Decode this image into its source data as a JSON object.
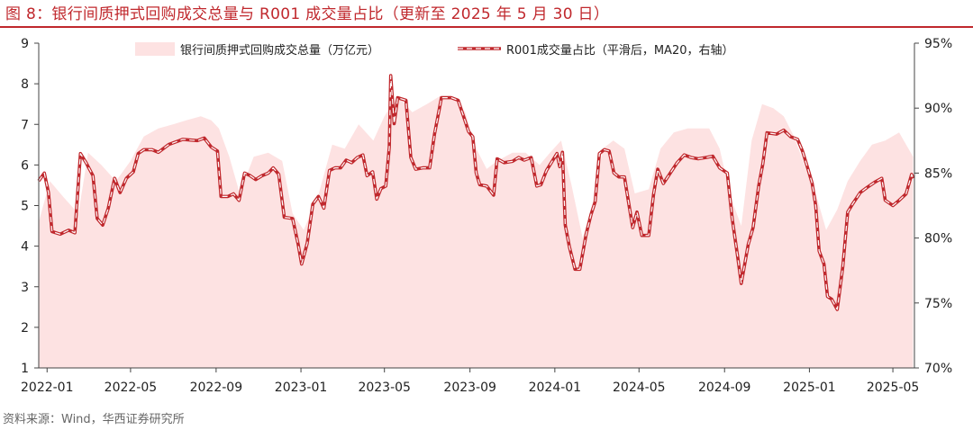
{
  "figure": {
    "title": "图 8：银行间质押式回购成交总量与 R001 成交量占比（更新至 2025 年 5 月 30 日）",
    "source": "资料来源：Wind，华西证券研究所"
  },
  "colors": {
    "title": "#c0282d",
    "area_fill": "#fde2e2",
    "line": "#c0282d",
    "axis": "#444444"
  },
  "chart_data": {
    "type": "line",
    "x_tick_labels": [
      "2022-01",
      "2022-05",
      "2022-09",
      "2023-01",
      "2023-05",
      "2023-09",
      "2024-01",
      "2024-05",
      "2024-09",
      "2025-01",
      "2025-05"
    ],
    "x_range": [
      "2021-12-20",
      "2025-06-01"
    ],
    "left_axis": {
      "range": [
        1,
        9
      ],
      "ticks": [
        "1",
        "2",
        "3",
        "4",
        "5",
        "6",
        "7",
        "8",
        "9"
      ]
    },
    "right_axis": {
      "range": [
        70,
        95
      ],
      "ticks": [
        "70%",
        "75%",
        "80%",
        "85%",
        "90%",
        "95%"
      ]
    },
    "grid": false,
    "legend": "top",
    "series": [
      {
        "name": "银行间质押式回购成交总量（万亿元）",
        "type": "area",
        "axis": "left",
        "points": [
          [
            "2021-12-20",
            4.6
          ],
          [
            "2022-01-05",
            5.6
          ],
          [
            "2022-01-25",
            5.2
          ],
          [
            "2022-02-15",
            4.8
          ],
          [
            "2022-03-01",
            6.3
          ],
          [
            "2022-03-20",
            6.0
          ],
          [
            "2022-04-10",
            5.6
          ],
          [
            "2022-05-01",
            6.1
          ],
          [
            "2022-05-20",
            6.7
          ],
          [
            "2022-06-10",
            6.9
          ],
          [
            "2022-07-01",
            7.0
          ],
          [
            "2022-07-20",
            7.1
          ],
          [
            "2022-08-10",
            7.2
          ],
          [
            "2022-08-25",
            7.1
          ],
          [
            "2022-09-05",
            6.9
          ],
          [
            "2022-09-20",
            6.2
          ],
          [
            "2022-10-05",
            5.3
          ],
          [
            "2022-10-25",
            6.2
          ],
          [
            "2022-11-15",
            6.3
          ],
          [
            "2022-12-05",
            6.1
          ],
          [
            "2022-12-20",
            4.8
          ],
          [
            "2023-01-05",
            4.4
          ],
          [
            "2023-01-25",
            5.2
          ],
          [
            "2023-02-15",
            6.5
          ],
          [
            "2023-03-05",
            6.4
          ],
          [
            "2023-03-25",
            7.0
          ],
          [
            "2023-04-15",
            6.6
          ],
          [
            "2023-05-01",
            7.2
          ],
          [
            "2023-05-20",
            7.7
          ],
          [
            "2023-06-10",
            7.3
          ],
          [
            "2023-07-01",
            7.5
          ],
          [
            "2023-07-20",
            7.7
          ],
          [
            "2023-08-10",
            7.6
          ],
          [
            "2023-08-25",
            7.3
          ],
          [
            "2023-09-10",
            6.4
          ],
          [
            "2023-09-25",
            5.9
          ],
          [
            "2023-10-10",
            6.1
          ],
          [
            "2023-11-01",
            6.3
          ],
          [
            "2023-11-20",
            6.3
          ],
          [
            "2023-12-10",
            6.0
          ],
          [
            "2023-12-25",
            6.3
          ],
          [
            "2024-01-10",
            6.6
          ],
          [
            "2024-01-25",
            5.5
          ],
          [
            "2024-02-10",
            4.2
          ],
          [
            "2024-02-25",
            5.0
          ],
          [
            "2024-03-10",
            6.4
          ],
          [
            "2024-03-25",
            6.6
          ],
          [
            "2024-04-10",
            6.4
          ],
          [
            "2024-04-25",
            5.3
          ],
          [
            "2024-05-15",
            5.4
          ],
          [
            "2024-06-01",
            6.4
          ],
          [
            "2024-06-20",
            6.8
          ],
          [
            "2024-07-10",
            6.9
          ],
          [
            "2024-07-25",
            6.9
          ],
          [
            "2024-08-10",
            6.9
          ],
          [
            "2024-08-25",
            6.4
          ],
          [
            "2024-09-10",
            5.2
          ],
          [
            "2024-09-25",
            4.5
          ],
          [
            "2024-10-10",
            6.6
          ],
          [
            "2024-10-25",
            7.5
          ],
          [
            "2024-11-10",
            7.4
          ],
          [
            "2024-11-25",
            7.2
          ],
          [
            "2024-12-10",
            6.7
          ],
          [
            "2024-12-25",
            6.0
          ],
          [
            "2025-01-10",
            5.3
          ],
          [
            "2025-01-25",
            4.4
          ],
          [
            "2025-02-10",
            4.9
          ],
          [
            "2025-02-25",
            5.6
          ],
          [
            "2025-03-15",
            6.1
          ],
          [
            "2025-04-01",
            6.5
          ],
          [
            "2025-04-20",
            6.6
          ],
          [
            "2025-05-10",
            6.8
          ],
          [
            "2025-05-30",
            6.2
          ]
        ]
      },
      {
        "name": "R001成交量占比（平滑后，MA20，右轴）",
        "type": "line",
        "axis": "right",
        "points": [
          [
            "2021-12-20",
            84.4
          ],
          [
            "2021-12-28",
            85.0
          ],
          [
            "2022-01-03",
            83.5
          ],
          [
            "2022-01-08",
            80.5
          ],
          [
            "2022-01-20",
            80.3
          ],
          [
            "2022-02-01",
            80.6
          ],
          [
            "2022-02-10",
            80.4
          ],
          [
            "2022-02-18",
            86.5
          ],
          [
            "2022-02-26",
            85.8
          ],
          [
            "2022-03-08",
            84.8
          ],
          [
            "2022-03-14",
            81.5
          ],
          [
            "2022-03-22",
            81.0
          ],
          [
            "2022-03-30",
            82.3
          ],
          [
            "2022-04-08",
            84.6
          ],
          [
            "2022-04-16",
            83.5
          ],
          [
            "2022-04-25",
            84.6
          ],
          [
            "2022-05-05",
            85.1
          ],
          [
            "2022-05-12",
            86.5
          ],
          [
            "2022-05-20",
            86.8
          ],
          [
            "2022-06-01",
            86.8
          ],
          [
            "2022-06-10",
            86.6
          ],
          [
            "2022-06-25",
            87.2
          ],
          [
            "2022-07-15",
            87.6
          ],
          [
            "2022-08-05",
            87.5
          ],
          [
            "2022-08-15",
            87.7
          ],
          [
            "2022-08-25",
            87.0
          ],
          [
            "2022-09-03",
            86.7
          ],
          [
            "2022-09-08",
            83.2
          ],
          [
            "2022-09-18",
            83.2
          ],
          [
            "2022-09-26",
            83.4
          ],
          [
            "2022-10-04",
            82.9
          ],
          [
            "2022-10-12",
            85.0
          ],
          [
            "2022-10-20",
            84.8
          ],
          [
            "2022-10-28",
            84.5
          ],
          [
            "2022-11-06",
            84.8
          ],
          [
            "2022-11-15",
            85.0
          ],
          [
            "2022-11-22",
            85.4
          ],
          [
            "2022-11-30",
            84.9
          ],
          [
            "2022-12-08",
            81.6
          ],
          [
            "2022-12-20",
            81.5
          ],
          [
            "2022-12-28",
            79.5
          ],
          [
            "2023-01-02",
            78.0
          ],
          [
            "2023-01-10",
            79.6
          ],
          [
            "2023-01-18",
            82.6
          ],
          [
            "2023-01-26",
            83.2
          ],
          [
            "2023-02-03",
            82.3
          ],
          [
            "2023-02-11",
            85.2
          ],
          [
            "2023-02-19",
            85.4
          ],
          [
            "2023-02-27",
            85.4
          ],
          [
            "2023-03-07",
            86.0
          ],
          [
            "2023-03-15",
            85.8
          ],
          [
            "2023-03-23",
            86.2
          ],
          [
            "2023-03-31",
            86.4
          ],
          [
            "2023-04-06",
            84.8
          ],
          [
            "2023-04-14",
            85.1
          ],
          [
            "2023-04-20",
            83.0
          ],
          [
            "2023-04-26",
            83.8
          ],
          [
            "2023-05-03",
            84.0
          ],
          [
            "2023-05-08",
            87.0
          ],
          [
            "2023-05-10",
            92.5
          ],
          [
            "2023-05-15",
            88.8
          ],
          [
            "2023-05-20",
            90.8
          ],
          [
            "2023-06-01",
            90.6
          ],
          [
            "2023-06-08",
            86.2
          ],
          [
            "2023-06-15",
            85.3
          ],
          [
            "2023-06-25",
            85.4
          ],
          [
            "2023-07-05",
            85.4
          ],
          [
            "2023-07-12",
            88.0
          ],
          [
            "2023-07-22",
            90.8
          ],
          [
            "2023-08-05",
            90.8
          ],
          [
            "2023-08-15",
            90.6
          ],
          [
            "2023-08-22",
            89.5
          ],
          [
            "2023-08-30",
            88.2
          ],
          [
            "2023-09-05",
            87.8
          ],
          [
            "2023-09-10",
            85.0
          ],
          [
            "2023-09-15",
            84.1
          ],
          [
            "2023-09-25",
            84.0
          ],
          [
            "2023-10-05",
            83.3
          ],
          [
            "2023-10-10",
            86.1
          ],
          [
            "2023-10-20",
            85.8
          ],
          [
            "2023-11-01",
            85.9
          ],
          [
            "2023-11-10",
            86.2
          ],
          [
            "2023-11-18",
            86.0
          ],
          [
            "2023-11-28",
            86.2
          ],
          [
            "2023-12-06",
            84.0
          ],
          [
            "2023-12-12",
            84.1
          ],
          [
            "2023-12-20",
            85.2
          ],
          [
            "2023-12-28",
            85.9
          ],
          [
            "2024-01-04",
            86.5
          ],
          [
            "2024-01-08",
            85.5
          ],
          [
            "2024-01-12",
            86.6
          ],
          [
            "2024-01-16",
            81.0
          ],
          [
            "2024-01-22",
            79.3
          ],
          [
            "2024-01-30",
            77.6
          ],
          [
            "2024-02-06",
            77.6
          ],
          [
            "2024-02-15",
            80.3
          ],
          [
            "2024-02-22",
            81.8
          ],
          [
            "2024-02-28",
            82.8
          ],
          [
            "2024-03-05",
            86.5
          ],
          [
            "2024-03-12",
            86.8
          ],
          [
            "2024-03-19",
            86.7
          ],
          [
            "2024-03-26",
            85.0
          ],
          [
            "2024-04-02",
            84.7
          ],
          [
            "2024-04-10",
            84.7
          ],
          [
            "2024-04-17",
            82.4
          ],
          [
            "2024-04-22",
            80.8
          ],
          [
            "2024-04-28",
            82.0
          ],
          [
            "2024-05-05",
            80.2
          ],
          [
            "2024-05-15",
            80.2
          ],
          [
            "2024-05-22",
            83.4
          ],
          [
            "2024-05-28",
            85.3
          ],
          [
            "2024-06-05",
            84.2
          ],
          [
            "2024-06-15",
            85.0
          ],
          [
            "2024-06-25",
            85.8
          ],
          [
            "2024-07-05",
            86.4
          ],
          [
            "2024-07-15",
            86.2
          ],
          [
            "2024-07-25",
            86.1
          ],
          [
            "2024-08-05",
            86.2
          ],
          [
            "2024-08-15",
            86.3
          ],
          [
            "2024-08-25",
            85.4
          ],
          [
            "2024-09-05",
            85.0
          ],
          [
            "2024-09-12",
            81.5
          ],
          [
            "2024-09-20",
            78.5
          ],
          [
            "2024-09-25",
            76.5
          ],
          [
            "2024-10-05",
            79.5
          ],
          [
            "2024-10-12",
            80.8
          ],
          [
            "2024-10-20",
            84.0
          ],
          [
            "2024-10-26",
            85.7
          ],
          [
            "2024-11-01",
            88.1
          ],
          [
            "2024-11-15",
            88.0
          ],
          [
            "2024-11-25",
            88.3
          ],
          [
            "2024-12-05",
            87.8
          ],
          [
            "2024-12-15",
            87.6
          ],
          [
            "2024-12-22",
            86.7
          ],
          [
            "2024-12-30",
            85.3
          ],
          [
            "2025-01-05",
            84.2
          ],
          [
            "2025-01-10",
            82.5
          ],
          [
            "2025-01-15",
            79.0
          ],
          [
            "2025-01-22",
            78.0
          ],
          [
            "2025-01-27",
            75.5
          ],
          [
            "2025-02-02",
            75.3
          ],
          [
            "2025-02-10",
            74.5
          ],
          [
            "2025-02-18",
            77.8
          ],
          [
            "2025-02-25",
            82.0
          ],
          [
            "2025-03-05",
            82.7
          ],
          [
            "2025-03-15",
            83.5
          ],
          [
            "2025-03-25",
            83.9
          ],
          [
            "2025-04-05",
            84.3
          ],
          [
            "2025-04-15",
            84.6
          ],
          [
            "2025-04-20",
            82.9
          ],
          [
            "2025-05-01",
            82.5
          ],
          [
            "2025-05-10",
            82.9
          ],
          [
            "2025-05-20",
            83.4
          ],
          [
            "2025-05-28",
            84.9
          ],
          [
            "2025-05-30",
            84.6
          ]
        ]
      }
    ]
  }
}
